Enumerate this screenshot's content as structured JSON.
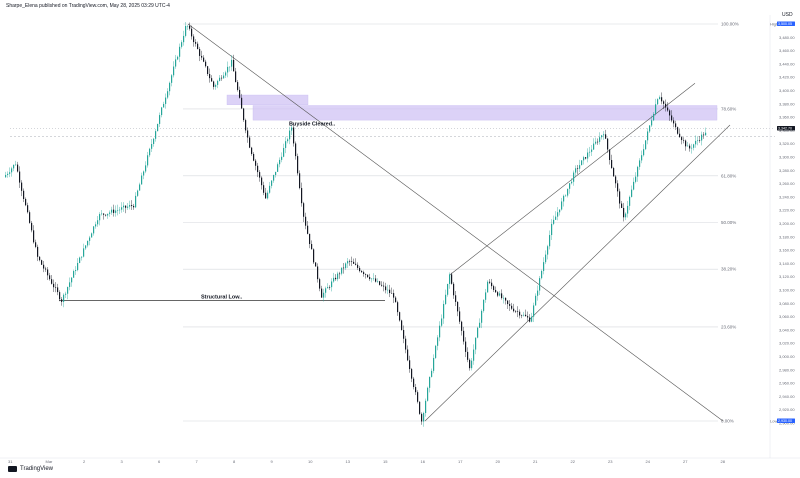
{
  "header": {
    "publisher": "Sharpe_Elena published on TradingView.com, May 28, 2025 03:29 UTC-4"
  },
  "footer": {
    "brand": "TradingView"
  },
  "colors": {
    "up": "#26a69a",
    "down": "#131722",
    "fib_line": "#d6d8de",
    "zone": "#d1c4f5",
    "trend": "#555555"
  },
  "chart_data": {
    "type": "candlestick",
    "currency": "USD",
    "fib_levels": [
      {
        "label": "100.00%",
        "price": 3500
      },
      {
        "label": "78.60%",
        "price": 3378
      },
      {
        "label": "61.80%",
        "price": 3282
      },
      {
        "label": "50.00%",
        "price": 3215
      },
      {
        "label": "38.20%",
        "price": 3148
      },
      {
        "label": "23.60%",
        "price": 3065
      },
      {
        "label": "0.00%",
        "price": 2930
      }
    ],
    "annotations": [
      {
        "text": "Buyside Cleared..",
        "price": 3357
      },
      {
        "text": "Structural Low..",
        "price": 3103
      }
    ],
    "x_labels": [
      "31",
      "Mar",
      "2",
      "3",
      "6",
      "7",
      "8",
      "9",
      "10",
      "13",
      "15",
      "16",
      "17",
      "20",
      "21",
      "22",
      "23",
      "24",
      "27",
      "28"
    ],
    "price_tags": [
      {
        "label": "High",
        "value": "3,500.05"
      },
      {
        "label": "",
        "value": "3,342.70"
      },
      {
        "label": "Low",
        "value": "2,930.00"
      }
    ],
    "price_axis": [
      3500,
      3480,
      3460,
      3440,
      3420,
      3400,
      3380,
      3360,
      3340,
      3320,
      3300,
      3280,
      3260,
      3240,
      3220,
      3200,
      3180,
      3160,
      3140,
      3120,
      3100,
      3080,
      3060,
      3040,
      3020,
      3000,
      2980,
      2960,
      2940,
      2920,
      2900
    ],
    "key_points": [
      {
        "t": 0,
        "price": 3280
      },
      {
        "t": 12,
        "price": 3300
      },
      {
        "t": 34,
        "price": 3165
      },
      {
        "t": 58,
        "price": 3103
      },
      {
        "t": 95,
        "price": 3225
      },
      {
        "t": 130,
        "price": 3240
      },
      {
        "t": 183,
        "price": 3500
      },
      {
        "t": 210,
        "price": 3410
      },
      {
        "t": 228,
        "price": 3445
      },
      {
        "t": 245,
        "price": 3330
      },
      {
        "t": 262,
        "price": 3250
      },
      {
        "t": 288,
        "price": 3352
      },
      {
        "t": 300,
        "price": 3225
      },
      {
        "t": 318,
        "price": 3110
      },
      {
        "t": 345,
        "price": 3160
      },
      {
        "t": 390,
        "price": 3110
      },
      {
        "t": 418,
        "price": 2930
      },
      {
        "t": 446,
        "price": 3140
      },
      {
        "t": 466,
        "price": 3005
      },
      {
        "t": 484,
        "price": 3130
      },
      {
        "t": 505,
        "price": 3095
      },
      {
        "t": 527,
        "price": 3075
      },
      {
        "t": 548,
        "price": 3210
      },
      {
        "t": 572,
        "price": 3290
      },
      {
        "t": 600,
        "price": 3345
      },
      {
        "t": 620,
        "price": 3220
      },
      {
        "t": 655,
        "price": 3400
      },
      {
        "t": 672,
        "price": 3350
      },
      {
        "t": 685,
        "price": 3320
      },
      {
        "t": 700,
        "price": 3342
      }
    ],
    "trend_lines": [
      {
        "name": "descending",
        "t1": 183,
        "p1": 3500,
        "t2": 718,
        "p2": 2930
      },
      {
        "name": "channel-lower",
        "t1": 420,
        "p1": 2930,
        "t2": 725,
        "p2": 3355
      },
      {
        "name": "channel-upper",
        "t1": 445,
        "p1": 3140,
        "t2": 690,
        "p2": 3415
      }
    ],
    "zones": [
      {
        "t1": 222,
        "t2": 303,
        "p_top": 3398,
        "p_bottom": 3384
      },
      {
        "t1": 248,
        "t2": 712,
        "p_top": 3383,
        "p_bottom": 3362
      }
    ],
    "dashed_level": {
      "price": 3350,
      "t1": 5,
      "t2": 770
    }
  }
}
